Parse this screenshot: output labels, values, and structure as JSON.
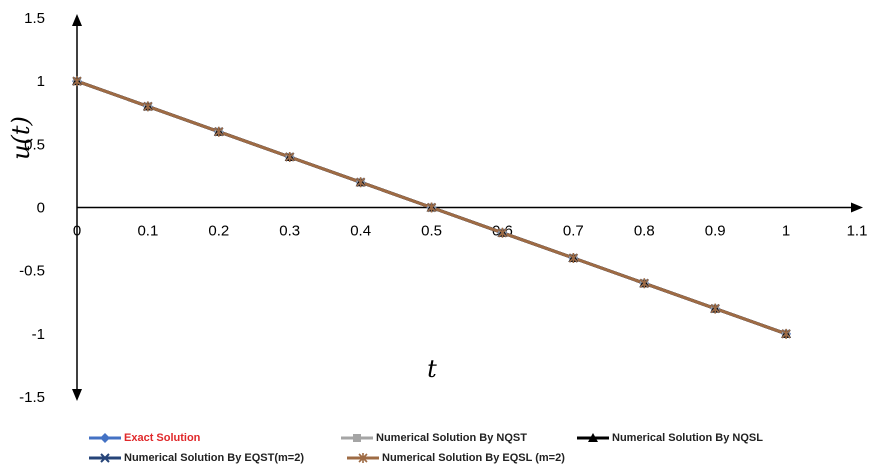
{
  "chart_data": {
    "type": "line",
    "title": "",
    "xlabel": "t",
    "ylabel": "u(t)",
    "xlim": [
      0,
      1.1
    ],
    "ylim": [
      -1.5,
      1.5
    ],
    "x_ticks": [
      "0",
      "0.1",
      "0.2",
      "0.3",
      "0.4",
      "0.5",
      "0.6",
      "0.7",
      "0.8",
      "0.9",
      "1",
      "1.1"
    ],
    "y_ticks": [
      "1.5",
      "1",
      "0.5",
      "0",
      "-0.5",
      "-1",
      "-1.5"
    ],
    "grid": false,
    "legend_position": "bottom",
    "x": [
      0,
      0.1,
      0.2,
      0.3,
      0.4,
      0.5,
      0.6,
      0.7,
      0.8,
      0.9,
      1
    ],
    "series": [
      {
        "name": "Exact Solution",
        "color": "#4472C4",
        "marker": "diamond",
        "values": [
          1,
          0.8,
          0.6,
          0.4,
          0.2,
          0,
          -0.2,
          -0.4,
          -0.6,
          -0.8,
          -1
        ]
      },
      {
        "name": "Numerical Solution By NQST",
        "color": "#A5A5A5",
        "marker": "square",
        "values": [
          1,
          0.8,
          0.6,
          0.4,
          0.2,
          0,
          -0.2,
          -0.4,
          -0.6,
          -0.8,
          -1
        ]
      },
      {
        "name": "Numerical Solution By NQSL",
        "color": "#000000",
        "marker": "triangle",
        "values": [
          1,
          0.8,
          0.6,
          0.4,
          0.2,
          0,
          -0.2,
          -0.4,
          -0.6,
          -0.8,
          -1
        ]
      },
      {
        "name": "Numerical Solution By EQST(m=2)",
        "color": "#264478",
        "marker": "x",
        "values": [
          1,
          0.8,
          0.6,
          0.4,
          0.2,
          0,
          -0.2,
          -0.4,
          -0.6,
          -0.8,
          -1
        ]
      },
      {
        "name": "Numerical Solution By EQSL (m=2)",
        "color": "#9E6B44",
        "marker": "star",
        "values": [
          1,
          0.8,
          0.6,
          0.4,
          0.2,
          0,
          -0.2,
          -0.4,
          -0.6,
          -0.8,
          -1
        ]
      }
    ],
    "legend_label_colors": [
      "#E0282A",
      "#222222",
      "#222222",
      "#222222",
      "#222222"
    ]
  }
}
